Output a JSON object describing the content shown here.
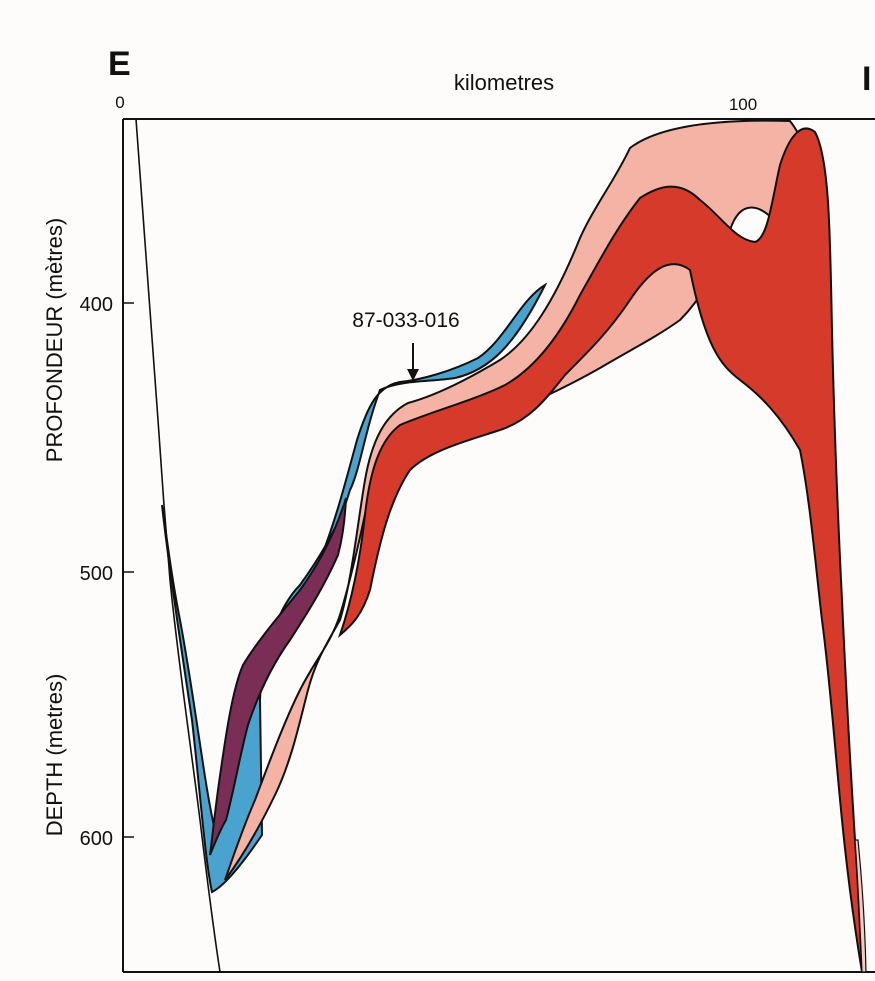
{
  "panel_label": "E",
  "panel_label_right": "I",
  "x_axis": {
    "label": "kilometres",
    "ticks": [
      "0",
      "100"
    ]
  },
  "y_axis": {
    "label_french": "PROFONDEUR (mètres)",
    "label_english": "DEPTH (metres)",
    "ticks": [
      "400",
      "500",
      "600"
    ]
  },
  "annotation": {
    "text": "87-033-016"
  },
  "colors": {
    "light_blue": "#4aa3cf",
    "purple": "#7a2e55",
    "pink": "#f5b3a5",
    "red": "#d63a2a",
    "outline": "#111111",
    "background": "#fdfcfa"
  }
}
